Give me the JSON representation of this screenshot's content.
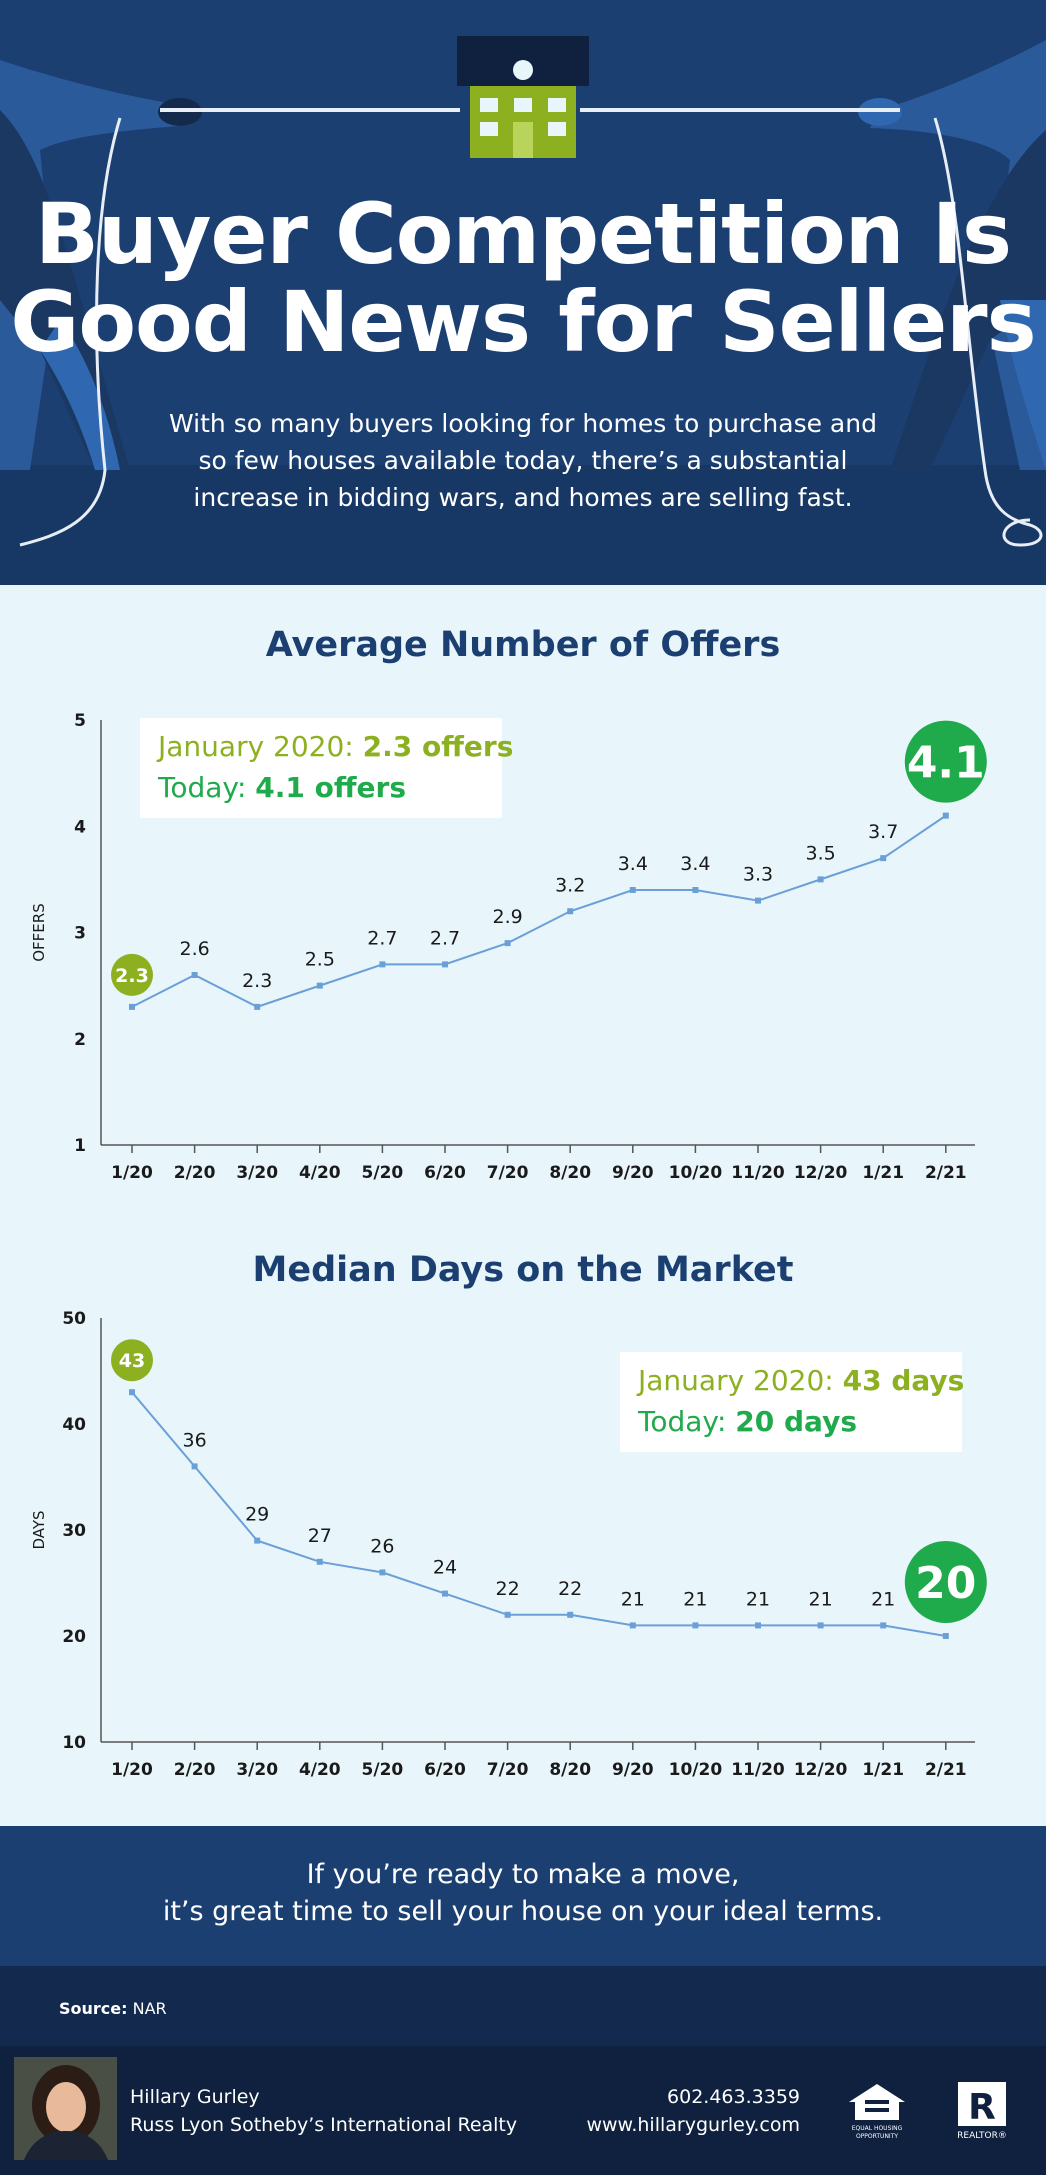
{
  "header": {
    "title_line1": "Buyer Competition Is",
    "title_line2": "Good News for Sellers",
    "subtitle_line1": "With so many buyers looking for homes to purchase and",
    "subtitle_line2": "so few houses available today, there’s a substantial",
    "subtitle_line3": "increase in bidding wars, and homes are selling fast."
  },
  "colors": {
    "navy": "#1c3f72",
    "light_bg": "#e8f6fb",
    "line": "#6a9fd8",
    "lime": "#8db021",
    "green": "#1faa4b"
  },
  "chart_data": [
    {
      "type": "line",
      "title": "Average Number of Offers",
      "ylabel": "OFFERS",
      "xlabel": "",
      "categories": [
        "1/20",
        "2/20",
        "3/20",
        "4/20",
        "5/20",
        "6/20",
        "7/20",
        "8/20",
        "9/20",
        "10/20",
        "11/20",
        "12/20",
        "1/21",
        "2/21"
      ],
      "values": [
        2.3,
        2.6,
        2.3,
        2.5,
        2.7,
        2.7,
        2.9,
        3.2,
        3.4,
        3.4,
        3.3,
        3.5,
        3.7,
        4.1
      ],
      "ylim": [
        1,
        5
      ],
      "yticks": [
        1,
        2,
        3,
        4,
        5
      ],
      "start_badge": "2.3",
      "end_badge": "4.1",
      "legend": {
        "line1_label": "January 2020: ",
        "line1_value": "2.3 offers",
        "line2_label": "Today: ",
        "line2_value": "4.1 offers"
      }
    },
    {
      "type": "line",
      "title": "Median Days on the Market",
      "ylabel": "DAYS",
      "xlabel": "",
      "categories": [
        "1/20",
        "2/20",
        "3/20",
        "4/20",
        "5/20",
        "6/20",
        "7/20",
        "8/20",
        "9/20",
        "10/20",
        "11/20",
        "12/20",
        "1/21",
        "2/21"
      ],
      "values": [
        43,
        36,
        29,
        27,
        26,
        24,
        22,
        22,
        21,
        21,
        21,
        21,
        21,
        20
      ],
      "ylim": [
        10,
        50
      ],
      "yticks": [
        10,
        20,
        30,
        40,
        50
      ],
      "start_badge": "43",
      "end_badge": "20",
      "legend": {
        "line1_label": "January 2020: ",
        "line1_value": "43 days",
        "line2_label": "Today: ",
        "line2_value": "20 days"
      }
    }
  ],
  "cta": {
    "line1": "If you’re ready to make a move,",
    "line2": "it’s great time to sell your house on your ideal terms."
  },
  "source": {
    "label": "Source:",
    "value": "NAR"
  },
  "footer": {
    "agent_name": "Hillary Gurley",
    "company": "Russ Lyon Sotheby’s International Realty",
    "phone": "602.463.3359",
    "website": "www.hillarygurley.com",
    "eho_text1": "EQUAL HOUSING",
    "eho_text2": "OPPORTUNITY",
    "realtor_mark": "R",
    "realtor_text": "REALTOR®"
  }
}
